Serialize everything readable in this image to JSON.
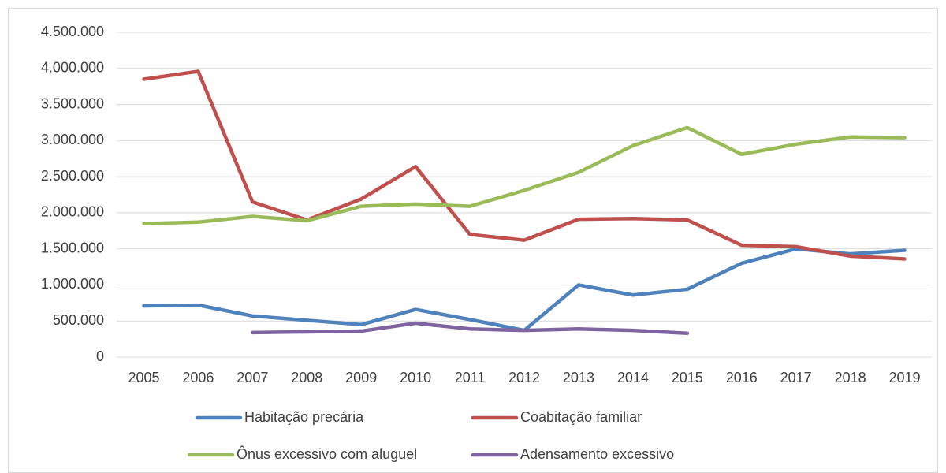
{
  "chart_data": {
    "type": "line",
    "categories": [
      "2005",
      "2006",
      "2007",
      "2008",
      "2009",
      "2010",
      "2011",
      "2012",
      "2013",
      "2014",
      "2015",
      "2016",
      "2017",
      "2018",
      "2019"
    ],
    "series": [
      {
        "name": "Habitação precária",
        "color": "#4f81bd",
        "values": [
          710000,
          720000,
          570000,
          510000,
          450000,
          660000,
          520000,
          370000,
          1000000,
          860000,
          940000,
          1300000,
          1500000,
          1430000,
          1480000
        ]
      },
      {
        "name": "Coabitação familiar",
        "color": "#c0504d",
        "values": [
          3850000,
          3960000,
          2150000,
          1900000,
          2190000,
          2640000,
          1700000,
          1620000,
          1910000,
          1920000,
          1900000,
          1550000,
          1530000,
          1400000,
          1360000
        ]
      },
      {
        "name": "Ônus excessivo com aluguel",
        "color": "#9bbb59",
        "values": [
          1850000,
          1870000,
          1950000,
          1890000,
          2090000,
          2120000,
          2090000,
          2310000,
          2560000,
          2930000,
          3180000,
          2810000,
          2950000,
          3050000,
          3040000
        ]
      },
      {
        "name": "Adensamento excessivo",
        "color": "#8064a2",
        "values": [
          null,
          null,
          340000,
          350000,
          360000,
          470000,
          390000,
          370000,
          390000,
          370000,
          330000,
          null,
          null,
          null,
          null
        ]
      }
    ],
    "ylim": [
      0,
      4500000
    ],
    "yticks": [
      0,
      {
        "value": 500000,
        "label": "500.000"
      },
      {
        "value": 1000000,
        "label": "1.000.000"
      },
      {
        "value": 1500000,
        "label": "1.500.000"
      },
      {
        "value": 2000000,
        "label": "2.000.000"
      },
      {
        "value": 2500000,
        "label": "2.500.000"
      },
      {
        "value": 3000000,
        "label": "3.000.000"
      },
      {
        "value": 3500000,
        "label": "3.500.000"
      },
      {
        "value": 4000000,
        "label": "4.000.000"
      },
      {
        "value": 4500000,
        "label": "4.500.000"
      }
    ],
    "grid": true,
    "legend": "bottom"
  }
}
